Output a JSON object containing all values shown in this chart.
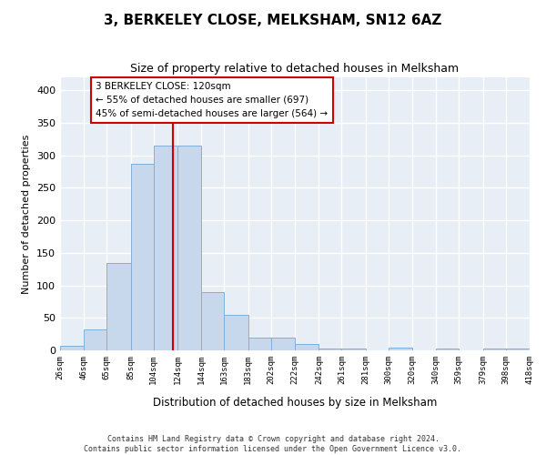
{
  "title": "3, BERKELEY CLOSE, MELKSHAM, SN12 6AZ",
  "subtitle": "Size of property relative to detached houses in Melksham",
  "xlabel": "Distribution of detached houses by size in Melksham",
  "ylabel": "Number of detached properties",
  "footer_line1": "Contains HM Land Registry data © Crown copyright and database right 2024.",
  "footer_line2": "Contains public sector information licensed under the Open Government Licence v3.0.",
  "bin_edges": [
    26,
    46,
    65,
    85,
    104,
    124,
    144,
    163,
    183,
    202,
    222,
    242,
    261,
    281,
    300,
    320,
    340,
    359,
    379,
    398,
    418
  ],
  "bar_heights": [
    7,
    32,
    135,
    287,
    315,
    315,
    90,
    55,
    20,
    20,
    10,
    3,
    3,
    0,
    4,
    0,
    3,
    0,
    3,
    3
  ],
  "bar_color": "#c8d8ec",
  "bar_edge_color": "#7fb0d9",
  "property_size": 120,
  "property_line_color": "#cc0000",
  "annotation_text_line1": "3 BERKELEY CLOSE: 120sqm",
  "annotation_text_line2": "← 55% of detached houses are smaller (697)",
  "annotation_text_line3": "45% of semi-detached houses are larger (564) →",
  "annotation_box_color": "#ffffff",
  "annotation_box_edge_color": "#cc0000",
  "ylim": [
    0,
    420
  ],
  "yticks": [
    0,
    50,
    100,
    150,
    200,
    250,
    300,
    350,
    400
  ],
  "bg_color": "#e8eef5",
  "grid_color": "#ffffff",
  "tick_labels": [
    "26sqm",
    "46sqm",
    "65sqm",
    "85sqm",
    "104sqm",
    "124sqm",
    "144sqm",
    "163sqm",
    "183sqm",
    "202sqm",
    "222sqm",
    "242sqm",
    "261sqm",
    "281sqm",
    "300sqm",
    "320sqm",
    "340sqm",
    "359sqm",
    "379sqm",
    "398sqm",
    "418sqm"
  ]
}
